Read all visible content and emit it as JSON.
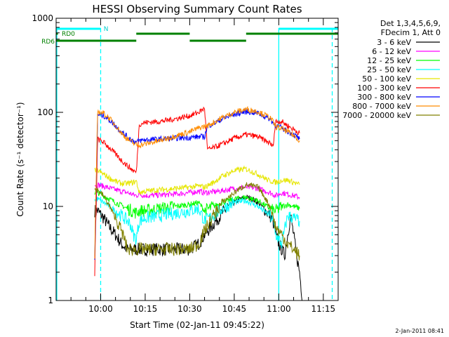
{
  "chart_data": {
    "type": "line",
    "title": "HESSI Observing Summary Count Rates",
    "xlabel": "Start Time (02-Jan-11 09:45:22)",
    "ylabel": "Count Rate (s⁻¹ detector⁻¹)",
    "yscale": "log",
    "ylim": [
      1,
      1000
    ],
    "y_ticks": [
      1,
      10,
      100,
      1000
    ],
    "y_tick_labels": [
      "1",
      "10",
      "100",
      "1000"
    ],
    "xlim_minutes": [
      0,
      95
    ],
    "x_ticks_minutes": [
      15,
      30,
      45,
      60,
      75,
      90
    ],
    "x_tick_labels": [
      "10:00",
      "10:15",
      "10:30",
      "10:45",
      "11:00",
      "11:15"
    ],
    "legend_position": "right",
    "legend_header": [
      "Det 1,3,4,5,6,9,",
      "FDecim 1, Att 0"
    ],
    "stamp": "2-Jan-2011 08:41",
    "x_unit_note": "minutes after 09:45:22",
    "series": [
      {
        "name": "3 - 6 keV",
        "color": "#000000",
        "x": [
          13,
          14,
          16,
          18,
          20,
          22,
          24,
          25,
          27,
          30,
          35,
          40,
          45,
          48,
          50,
          53,
          56,
          58,
          60,
          62,
          64,
          66,
          68,
          70,
          72,
          73,
          74,
          75,
          76,
          77,
          78,
          79,
          80,
          81,
          82,
          83
        ],
        "y": [
          9,
          9,
          7.5,
          6,
          5,
          4,
          3.5,
          3.5,
          3.5,
          3.5,
          3.5,
          3.5,
          3.5,
          4,
          5,
          6.5,
          8.5,
          10,
          11,
          12,
          12.5,
          12,
          11,
          9.5,
          8,
          7,
          5,
          4,
          3.5,
          3,
          5,
          8,
          5,
          3,
          2,
          1
        ]
      },
      {
        "name": "6 - 12 keV",
        "color": "#ff00ff",
        "x": [
          13,
          14,
          17,
          20,
          24,
          27,
          28,
          30,
          35,
          40,
          45,
          48,
          50,
          55,
          60,
          64,
          68,
          72,
          73,
          74,
          76,
          78,
          80,
          82
        ],
        "y": [
          17,
          17,
          16,
          15,
          14,
          13,
          13.5,
          13,
          13.2,
          13.5,
          14,
          14.5,
          14,
          14.5,
          15.5,
          16,
          15.5,
          14,
          13.5,
          13,
          14,
          13.5,
          13,
          12.5
        ]
      },
      {
        "name": "12 - 25 keV",
        "color": "#00ff00",
        "x": [
          13,
          14,
          17,
          20,
          24,
          27,
          28,
          30,
          35,
          40,
          45,
          48,
          50,
          53,
          56,
          60,
          64,
          68,
          72,
          73,
          74,
          76,
          78,
          80,
          82
        ],
        "y": [
          14,
          14,
          12.5,
          11,
          9.5,
          8.5,
          9,
          9,
          9.5,
          10,
          10.5,
          11,
          9,
          10,
          11,
          12,
          12.5,
          11.5,
          9.5,
          9,
          9,
          10,
          10.5,
          10,
          9.5
        ]
      },
      {
        "name": "25 - 50 keV",
        "color": "#00ffff",
        "x": [
          13,
          14,
          17,
          20,
          23,
          25,
          26,
          27,
          28,
          30,
          35,
          40,
          45,
          48,
          50,
          53,
          56,
          60,
          64,
          68,
          72,
          73,
          74,
          76,
          78,
          80,
          82
        ],
        "y": [
          12,
          12,
          10.5,
          9,
          7.5,
          6.5,
          5,
          4.5,
          7,
          7.5,
          8,
          8.5,
          9,
          9.5,
          7,
          8,
          9.5,
          11,
          11.5,
          10,
          8,
          7,
          5,
          4,
          8,
          7.5,
          7
        ]
      },
      {
        "name": "50 - 100 keV",
        "color": "#e6e600",
        "x": [
          13,
          14,
          16,
          18,
          20,
          22,
          24,
          26,
          27,
          28,
          30,
          35,
          40,
          45,
          48,
          50,
          53,
          56,
          60,
          64,
          68,
          72,
          73,
          74,
          76,
          78,
          80,
          82
        ],
        "y": [
          24,
          24,
          22,
          20,
          18.5,
          17.5,
          17.5,
          18,
          18.5,
          14,
          14.5,
          15,
          15.5,
          16,
          16.5,
          16,
          18,
          21,
          24,
          25,
          22,
          18.5,
          18.5,
          18,
          19,
          19,
          18,
          17
        ]
      },
      {
        "name": "100 - 300 keV",
        "color": "#ff0000",
        "x": [
          13,
          14,
          16,
          18,
          20,
          22,
          24,
          26,
          27,
          28,
          30,
          35,
          40,
          45,
          48,
          50,
          51,
          53,
          56,
          60,
          64,
          68,
          72,
          73,
          74,
          76,
          78,
          80,
          82
        ],
        "y": [
          2,
          52,
          48,
          42,
          36,
          31,
          27,
          24,
          23,
          75,
          78,
          80,
          85,
          92,
          100,
          110,
          40,
          42,
          46,
          53,
          58,
          55,
          47,
          43,
          80,
          80,
          72,
          66,
          60
        ]
      },
      {
        "name": "300 - 800 keV",
        "color": "#0000ff",
        "x": [
          13,
          14,
          16,
          18,
          20,
          22,
          24,
          26,
          27,
          28,
          30,
          35,
          40,
          45,
          48,
          50,
          51,
          53,
          56,
          60,
          64,
          68,
          72,
          73,
          74,
          76,
          78,
          80,
          82
        ],
        "y": [
          2.5,
          95,
          92,
          83,
          72,
          62,
          55,
          50,
          48,
          50,
          51,
          52,
          53,
          54,
          55,
          55,
          72,
          76,
          85,
          95,
          102,
          98,
          85,
          78,
          72,
          68,
          63,
          58,
          52
        ]
      },
      {
        "name": "800 - 7000 keV",
        "color": "#ff8c00",
        "x": [
          13,
          14,
          16,
          18,
          20,
          22,
          24,
          26,
          27,
          28,
          30,
          35,
          40,
          45,
          48,
          50,
          51,
          53,
          56,
          60,
          64,
          68,
          72,
          73,
          74,
          76,
          78,
          80,
          82
        ],
        "y": [
          3,
          102,
          98,
          86,
          73,
          60,
          52,
          47,
          45,
          45,
          46,
          50,
          56,
          62,
          68,
          71,
          72,
          78,
          88,
          100,
          108,
          102,
          88,
          80,
          70,
          67,
          62,
          57,
          50
        ]
      },
      {
        "name": "7000 - 20000 keV",
        "color": "#808000",
        "x": [
          13,
          14,
          16,
          18,
          20,
          22,
          23,
          24,
          25,
          26,
          27,
          28,
          30,
          35,
          40,
          45,
          48,
          50,
          53,
          56,
          60,
          64,
          68,
          70,
          72,
          73,
          74,
          76,
          78,
          80,
          82
        ],
        "y": [
          15,
          15,
          13,
          10,
          7.5,
          5.5,
          4.5,
          3.5,
          3.5,
          3.5,
          3.5,
          3.5,
          3.5,
          3.5,
          3.5,
          3.5,
          4,
          5.5,
          8,
          11,
          14,
          17,
          16,
          13,
          10,
          8,
          6,
          5,
          4,
          3.5,
          3
        ]
      }
    ],
    "flag_bars": [
      {
        "label": "N",
        "color": "#00ffff",
        "segments": [
          [
            0,
            15
          ],
          [
            75,
            95
          ]
        ],
        "level": 2
      },
      {
        "label": "RD0",
        "color": "#008000",
        "segments": [
          [
            0,
            0.6
          ]
        ],
        "level": 1
      },
      {
        "label": "RD6",
        "color": "#008000",
        "segments": [
          [
            0,
            27
          ],
          [
            27,
            45
          ],
          [
            45,
            64
          ],
          [
            64,
            95
          ]
        ],
        "level_pattern": [
          0,
          1,
          0,
          1
        ]
      }
    ],
    "vertical_markers": [
      {
        "x": -0.2,
        "color": "#00ffff",
        "style": "solid"
      },
      {
        "x": 15,
        "color": "#00ffff",
        "style": "dashed"
      },
      {
        "x": 75,
        "color": "#00ffff",
        "style": "solid"
      },
      {
        "x": 93,
        "color": "#00ffff",
        "style": "dashed"
      }
    ]
  }
}
